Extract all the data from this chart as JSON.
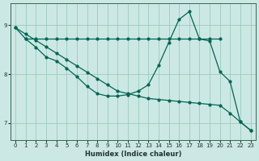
{
  "xlabel": "Humidex (Indice chaleur)",
  "bg_color": "#cce8e4",
  "grid_color": "#99ccbb",
  "line_color": "#006655",
  "xlim": [
    -0.5,
    23.5
  ],
  "ylim": [
    6.65,
    9.45
  ],
  "yticks": [
    7,
    8,
    9
  ],
  "xticks": [
    0,
    1,
    2,
    3,
    4,
    5,
    6,
    7,
    8,
    9,
    10,
    11,
    12,
    13,
    14,
    15,
    16,
    17,
    18,
    19,
    20,
    21,
    22,
    23
  ],
  "line_horiz_x": [
    1,
    2,
    3,
    4,
    5,
    6,
    7,
    8,
    9,
    10,
    11,
    12,
    13,
    14,
    15,
    16,
    17,
    18,
    19,
    20
  ],
  "line_horiz_y": [
    8.72,
    8.72,
    8.72,
    8.72,
    8.72,
    8.72,
    8.72,
    8.72,
    8.72,
    8.72,
    8.72,
    8.72,
    8.72,
    8.72,
    8.72,
    8.72,
    8.72,
    8.72,
    8.72,
    8.72
  ],
  "line_diag_x": [
    0,
    1,
    2,
    3,
    4,
    5,
    6,
    7,
    8,
    9,
    10,
    11,
    12,
    13,
    14,
    15,
    16,
    17,
    18,
    19,
    20,
    21,
    22,
    23
  ],
  "line_diag_y": [
    8.95,
    8.82,
    8.69,
    8.56,
    8.43,
    8.3,
    8.17,
    8.04,
    7.91,
    7.78,
    7.65,
    7.6,
    7.55,
    7.5,
    7.48,
    7.46,
    7.44,
    7.42,
    7.4,
    7.38,
    7.36,
    7.2,
    7.02,
    6.85
  ],
  "line_curve_x": [
    0,
    1,
    2,
    3,
    4,
    5,
    6,
    7,
    8,
    9,
    10,
    11,
    12,
    13,
    14,
    15,
    16,
    17,
    18,
    19,
    20,
    21,
    22,
    23
  ],
  "line_curve_y": [
    8.95,
    8.72,
    8.55,
    8.35,
    8.27,
    8.12,
    7.95,
    7.75,
    7.6,
    7.55,
    7.55,
    7.58,
    7.65,
    7.78,
    8.18,
    8.65,
    9.12,
    9.28,
    8.72,
    8.68,
    8.05,
    7.85,
    7.02,
    6.85
  ]
}
